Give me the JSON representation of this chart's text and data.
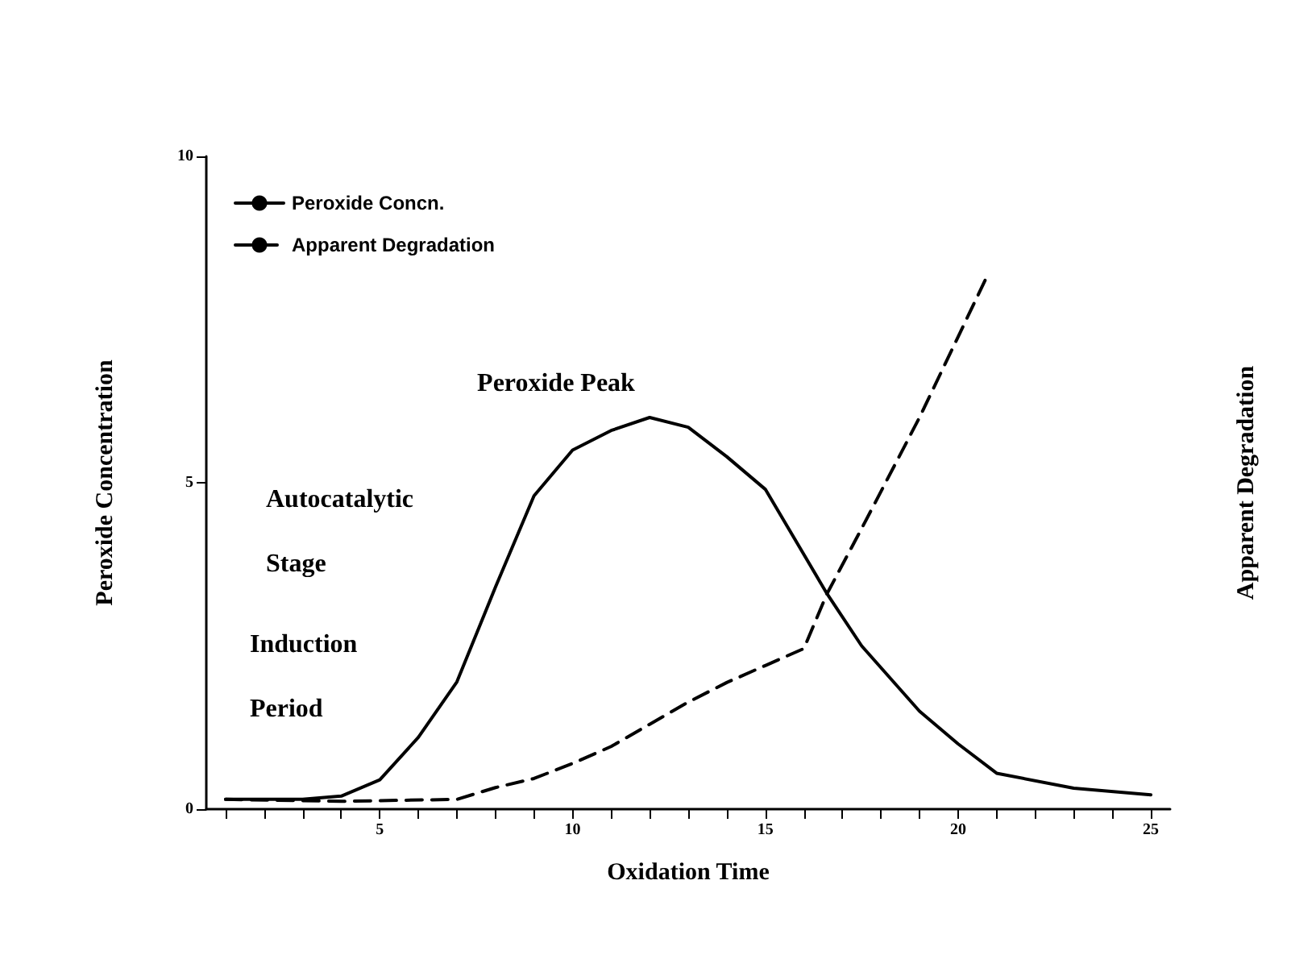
{
  "chart_data": {
    "type": "line",
    "xlabel": "Oxidation Time",
    "ylabel": "Peroxide Concentration",
    "y2label": "Apparent Degradation",
    "x": [
      1,
      3,
      4,
      5,
      6,
      7,
      8,
      9,
      10,
      11,
      12,
      13,
      14,
      15,
      16,
      16.6,
      17.5,
      19,
      20,
      21,
      23,
      25
    ],
    "series": [
      {
        "name": "Peroxide Concn.",
        "color": "#000000",
        "line_style": "solid",
        "values": [
          0.15,
          0.15,
          0.2,
          0.45,
          1.1,
          1.95,
          3.4,
          4.8,
          5.5,
          5.8,
          6.0,
          5.85,
          5.4,
          4.9,
          3.9,
          3.3,
          2.5,
          1.5,
          1.0,
          0.55,
          0.32,
          0.22
        ]
      },
      {
        "name": "Apparent Degradation",
        "color": "#000000",
        "line_style": "dashed",
        "x": [
          1,
          4,
          7,
          8,
          9,
          10,
          11,
          12,
          13,
          14,
          15,
          16,
          16.6,
          17.5,
          19,
          20.7
        ],
        "values": [
          0.15,
          0.12,
          0.15,
          0.33,
          0.47,
          0.7,
          0.96,
          1.3,
          1.64,
          1.94,
          2.2,
          2.46,
          3.3,
          4.3,
          6.0,
          8.1
        ]
      }
    ],
    "annotations": [
      "Peroxide Peak",
      "Autocatalytic Stage",
      "Induction Period"
    ],
    "xlim": [
      0.5,
      25.5
    ],
    "xticks": [
      {
        "value": 1,
        "label": null
      },
      {
        "value": 2,
        "label": null
      },
      {
        "value": 3,
        "label": null
      },
      {
        "value": 4,
        "label": null
      },
      5,
      {
        "value": 6,
        "label": null
      },
      {
        "value": 7,
        "label": null
      },
      {
        "value": 8,
        "label": null
      },
      {
        "value": 9,
        "label": null
      },
      10,
      {
        "value": 11,
        "label": null
      },
      {
        "value": 12,
        "label": null
      },
      {
        "value": 13,
        "label": null
      },
      {
        "value": 14,
        "label": null
      },
      15,
      {
        "value": 16,
        "label": null
      },
      {
        "value": 17,
        "label": null
      },
      {
        "value": 18,
        "label": null
      },
      {
        "value": 19,
        "label": null
      },
      20,
      {
        "value": 21,
        "label": null
      },
      {
        "value": 22,
        "label": null
      },
      {
        "value": 23,
        "label": null
      },
      {
        "value": 24,
        "label": null
      },
      25
    ],
    "ylim": [
      0,
      10
    ],
    "yticks": [
      0,
      5,
      10
    ],
    "grid": false,
    "legend": "top left",
    "marker": "none"
  }
}
